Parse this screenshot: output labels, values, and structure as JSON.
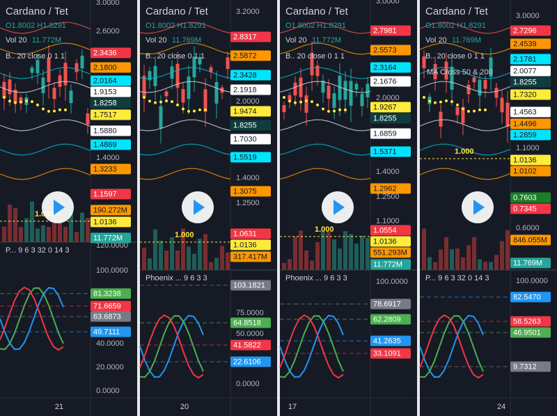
{
  "panels": [
    {
      "title": "Cardano / Tet",
      "ohlc": "O1.8002 H1.8291",
      "vol": "Vol 20",
      "vol_value": "11.772M",
      "indicator": "B.. 20 close 0 1 1",
      "level": "1.000",
      "oscillator": "P... 9 6 3 32 0 14 3",
      "date": "21",
      "axis": [
        "3.0000",
        "2.6000",
        "1.4000",
        "120.0000",
        "100.0000",
        "40.0000",
        "20.0000",
        "0.0000"
      ],
      "tags": [
        {
          "text": "2.3436",
          "color": "#f23645"
        },
        {
          "text": "2.1800",
          "color": "#ff9800"
        },
        {
          "text": "2.0164",
          "color": "#00e5ff"
        },
        {
          "text": "1.9153",
          "color": "#ffffff"
        },
        {
          "text": "1.8258",
          "color": "#0f3d3e"
        },
        {
          "text": "1.7517",
          "color": "#ffeb3b"
        },
        {
          "text": "1.5880",
          "color": "#ffffff"
        },
        {
          "text": "1.4869",
          "color": "#00e5ff"
        },
        {
          "text": "1.3233",
          "color": "#ff9800"
        },
        {
          "text": "1.1597",
          "color": "#f23645"
        },
        {
          "text": "190.272M",
          "color": "#ff9800"
        },
        {
          "text": "1.0136",
          "color": "#ffeb3b"
        },
        {
          "text": "11.772M",
          "color": "#26a69a"
        },
        {
          "text": "81.3238",
          "color": "#4caf50"
        },
        {
          "text": "71.6659",
          "color": "#f23645"
        },
        {
          "text": "63.6873",
          "color": "#787b86"
        },
        {
          "text": "49.7111",
          "color": "#2196f3"
        }
      ]
    },
    {
      "title": "Cardano / Tet",
      "ohlc": "O1.8002 H1.8291",
      "vol": "Vol 20",
      "vol_value": "11.769M",
      "indicator": "B.. 20 close 0 1 1",
      "level": "1.000",
      "oscillator": "Phoenix ... 9 6 3 3",
      "date": "20",
      "axis": [
        "3.2000",
        "2.0000",
        "1.4000",
        "1.2500",
        "75.0000",
        "50.0000",
        "0.0000"
      ],
      "tags": [
        {
          "text": "2.8317",
          "color": "#f23645"
        },
        {
          "text": "2.5872",
          "color": "#ff9800"
        },
        {
          "text": "2.3428",
          "color": "#00e5ff"
        },
        {
          "text": "2.1918",
          "color": "#ffffff"
        },
        {
          "text": "1.9474",
          "color": "#ffeb3b"
        },
        {
          "text": "1.8255",
          "color": "#0f3d3e"
        },
        {
          "text": "1.7030",
          "color": "#ffffff"
        },
        {
          "text": "1.5519",
          "color": "#00e5ff"
        },
        {
          "text": "1.3075",
          "color": "#ff9800"
        },
        {
          "text": "1.0631",
          "color": "#f23645"
        },
        {
          "text": "1.0136",
          "color": "#ffeb3b"
        },
        {
          "text": "317.417M",
          "color": "#ff9800"
        },
        {
          "text": "103.1821",
          "color": "#787b86"
        },
        {
          "text": "64.8518",
          "color": "#4caf50"
        },
        {
          "text": "41.5822",
          "color": "#f23645"
        },
        {
          "text": "22.6106",
          "color": "#2196f3"
        }
      ]
    },
    {
      "title": "Cardano / Tet",
      "ohlc": "O1.8002 H1.8291",
      "vol": "Vol 20",
      "vol_value": "11.772M",
      "indicator": "B.. 20 close 0 1 1",
      "level": "1.000",
      "oscillator": "Phoenix ... 9 6 3 3",
      "date": "17",
      "axis": [
        "3.0000",
        "2.0000",
        "1.4000",
        "1.2500",
        "1.1000",
        "100.0000"
      ],
      "tags": [
        {
          "text": "2.7981",
          "color": "#f23645"
        },
        {
          "text": "2.5573",
          "color": "#ff9800"
        },
        {
          "text": "2.3164",
          "color": "#00e5ff"
        },
        {
          "text": "2.1676",
          "color": "#ffffff"
        },
        {
          "text": "1.9267",
          "color": "#ffeb3b"
        },
        {
          "text": "1.8255",
          "color": "#0f3d3e"
        },
        {
          "text": "1.6859",
          "color": "#ffffff"
        },
        {
          "text": "1.5371",
          "color": "#00e5ff"
        },
        {
          "text": "1.2962",
          "color": "#ff9800"
        },
        {
          "text": "1.0554",
          "color": "#f23645"
        },
        {
          "text": "1.0136",
          "color": "#ffeb3b"
        },
        {
          "text": "551.293M",
          "color": "#ff9800"
        },
        {
          "text": "11.772M",
          "color": "#26a69a"
        },
        {
          "text": "78.6917",
          "color": "#787b86"
        },
        {
          "text": "62.2809",
          "color": "#4caf50"
        },
        {
          "text": "41.2635",
          "color": "#2196f3"
        },
        {
          "text": "33.1091",
          "color": "#f23645"
        }
      ]
    },
    {
      "title": "Cardano / Tet",
      "ohlc": "O1.8002 H1.8291",
      "vol": "Vol 20",
      "vol_value": "11.769M",
      "indicator": "B.. 20 close 0 1 1",
      "extra": "MA Cross 50 & 200",
      "level": "1.000",
      "oscillator": "P... 9 6 3 32 0 14 3",
      "date": "24",
      "axis": [
        "3.0000",
        "1.1000",
        "0.6000",
        "100.0000"
      ],
      "tags": [
        {
          "text": "2.7296",
          "color": "#f23645"
        },
        {
          "text": "2.4539",
          "color": "#ff9800"
        },
        {
          "text": "2.1781",
          "color": "#00e5ff"
        },
        {
          "text": "2.0077",
          "color": "#ffffff"
        },
        {
          "text": "1.8255",
          "color": "#0f3d3e"
        },
        {
          "text": "1.7320",
          "color": "#ffeb3b"
        },
        {
          "text": "1.4563",
          "color": "#ffffff"
        },
        {
          "text": "1.4496",
          "color": "#ff9800"
        },
        {
          "text": "1.2859",
          "color": "#00e5ff"
        },
        {
          "text": "1.0136",
          "color": "#ffeb3b"
        },
        {
          "text": "1.0102",
          "color": "#ff9800"
        },
        {
          "text": "0.7603",
          "color": "#1b7f2a"
        },
        {
          "text": "0.7345",
          "color": "#f23645"
        },
        {
          "text": "846.055M",
          "color": "#ff9800"
        },
        {
          "text": "11.769M",
          "color": "#26a69a"
        },
        {
          "text": "82.5470",
          "color": "#2196f3"
        },
        {
          "text": "58.5263",
          "color": "#f23645"
        },
        {
          "text": "46.9501",
          "color": "#4caf50"
        },
        {
          "text": "9.7312",
          "color": "#787b86"
        }
      ]
    }
  ]
}
